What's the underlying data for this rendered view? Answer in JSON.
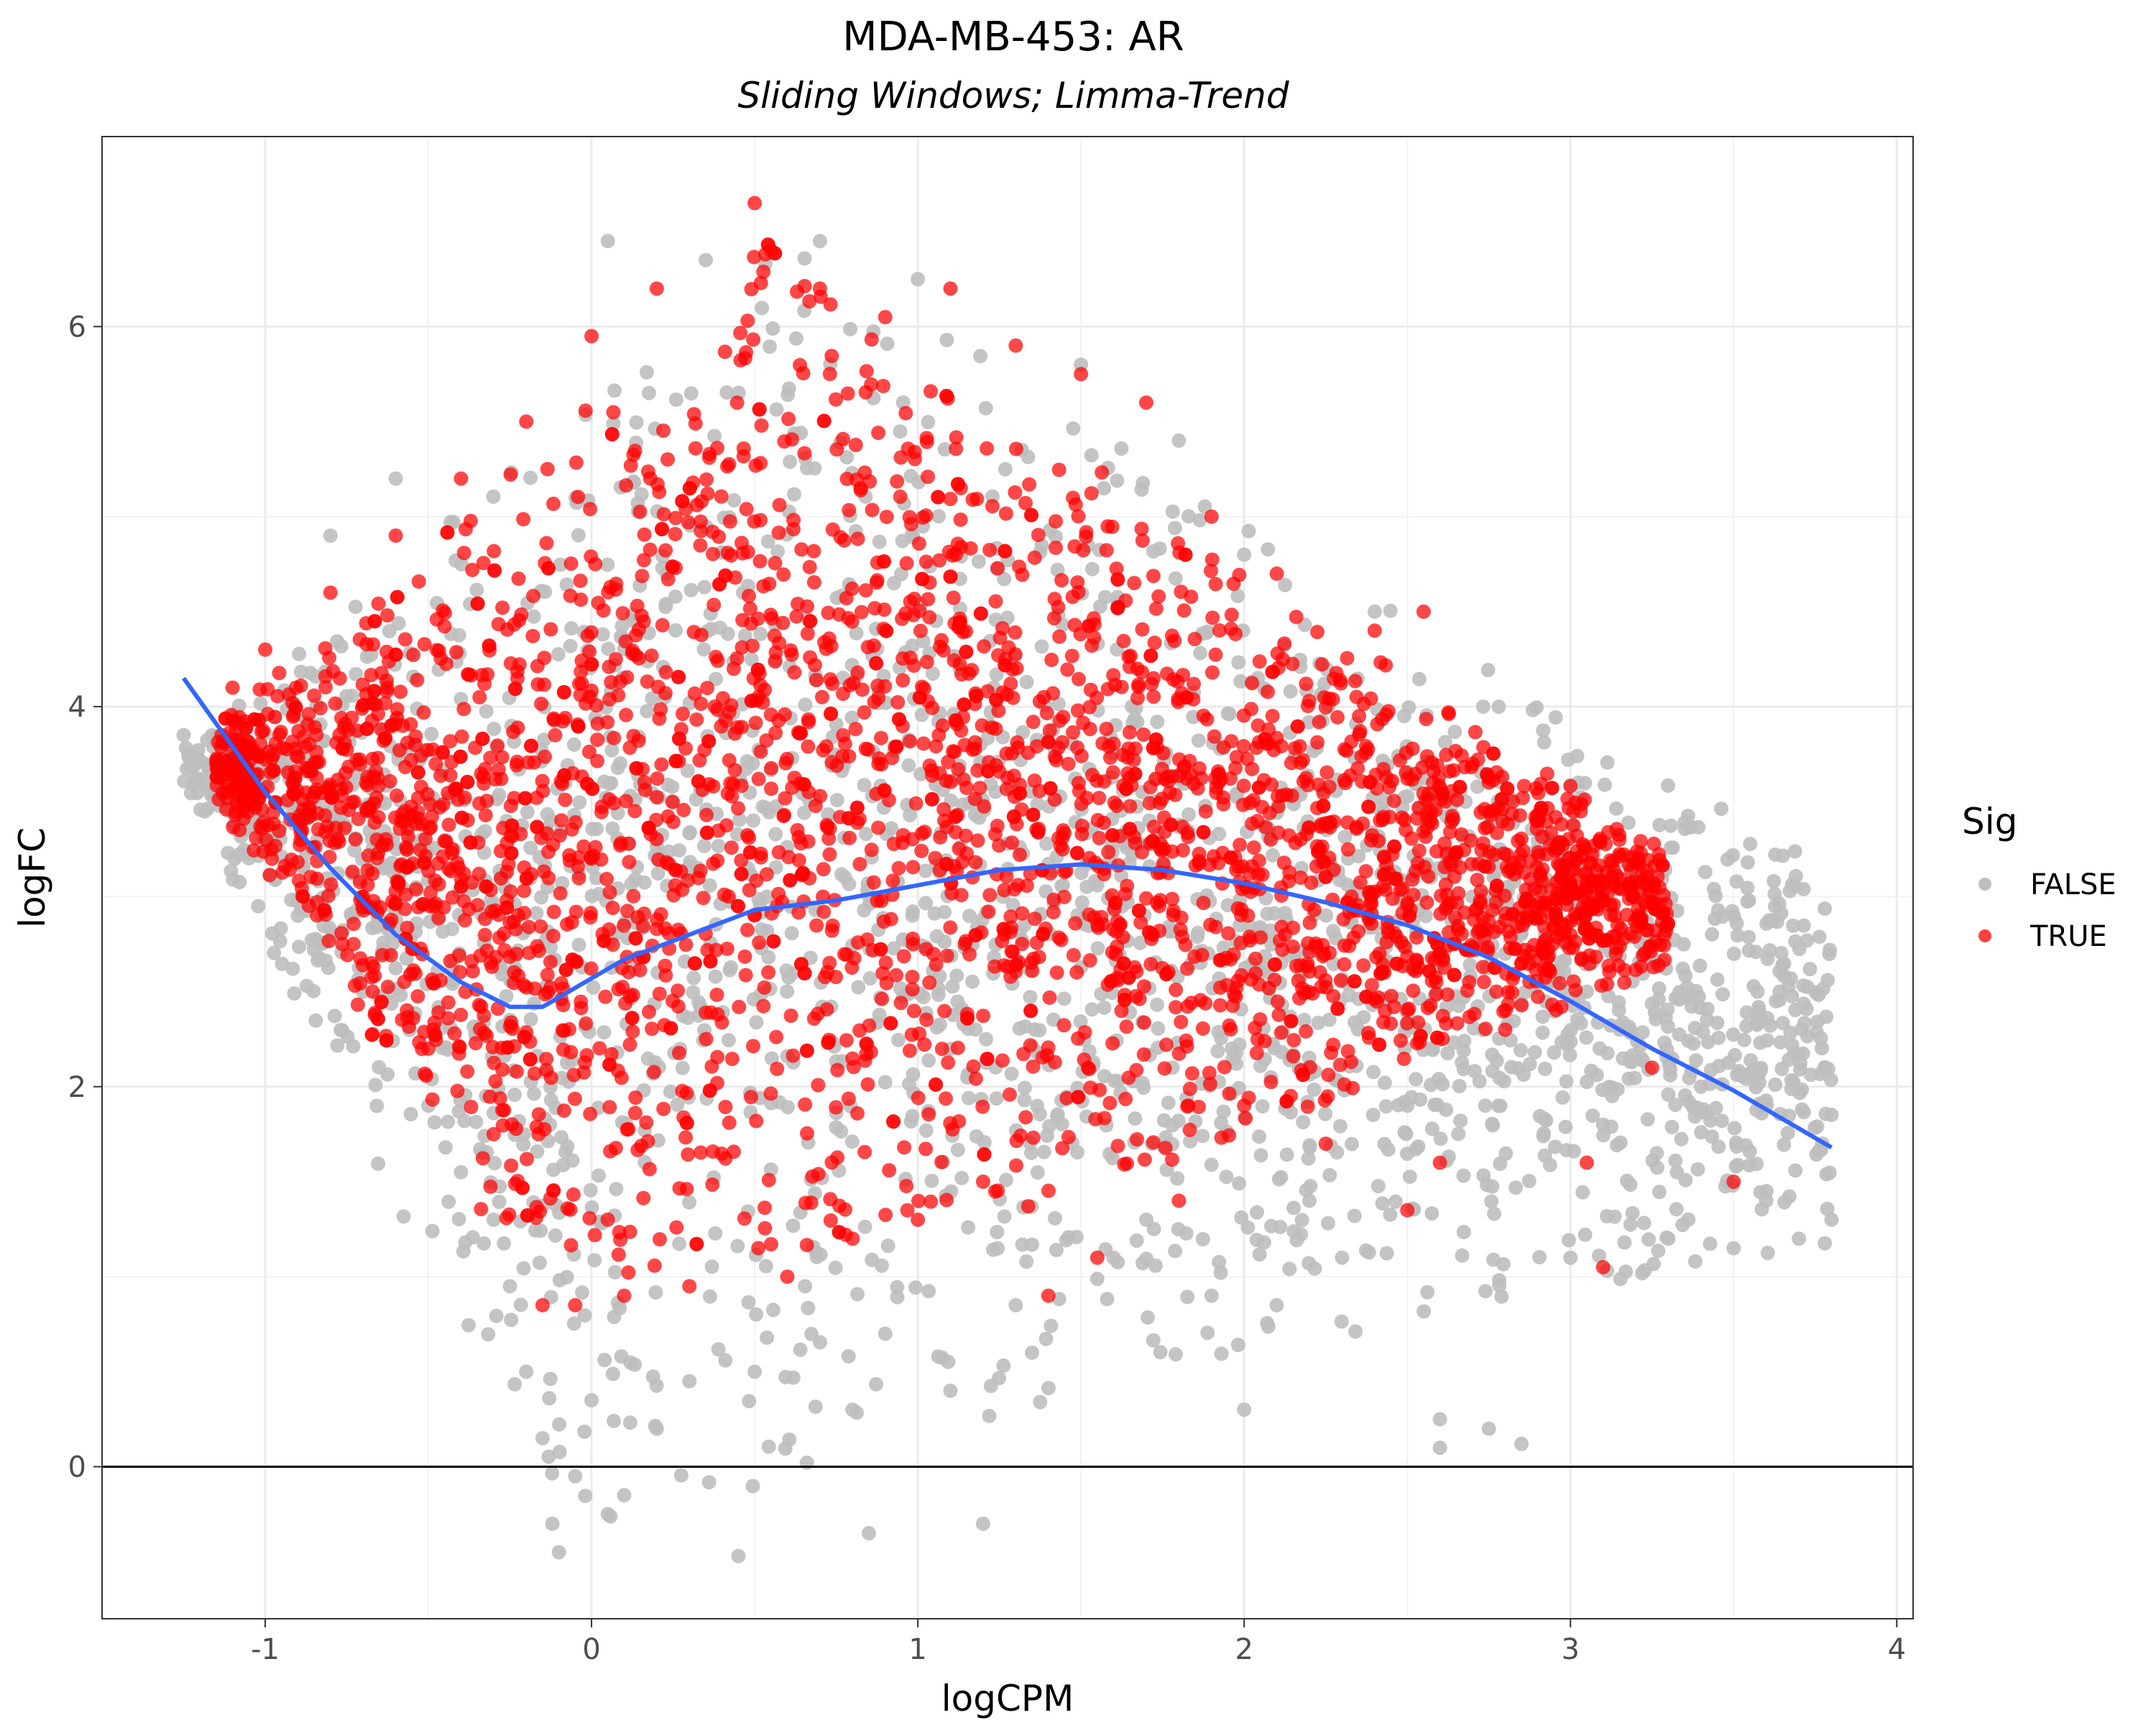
{
  "chart_data": {
    "type": "scatter",
    "title": "MDA-MB-453: AR",
    "subtitle": "Sliding Windows; Limma-Trend",
    "xlabel": "logCPM",
    "ylabel": "logFC",
    "xlim": [
      -1.5,
      4.05
    ],
    "ylim": [
      -0.8,
      7.0
    ],
    "x_ticks": [
      -1,
      0,
      1,
      2,
      3,
      4
    ],
    "x_tick_labels": [
      "-1",
      "0",
      "1",
      "2",
      "3",
      "4"
    ],
    "y_ticks": [
      0,
      2,
      4,
      6
    ],
    "y_tick_labels": [
      "0",
      "2",
      "4",
      "6"
    ],
    "grid": true,
    "reference_line": {
      "y": 0,
      "color": "#000000"
    },
    "legend": {
      "title": "Sig",
      "position": "right",
      "entries": [
        {
          "label": "FALSE",
          "color": "#bebebe"
        },
        {
          "label": "TRUE",
          "color": "#ff0000"
        }
      ]
    },
    "series": [
      {
        "key": "FALSE",
        "color": "#bebebe",
        "points": [
          [
            -1.25,
            3.85
          ],
          [
            -1.1,
            3.6
          ],
          [
            -1.0,
            3.3
          ],
          [
            -0.9,
            2.9
          ],
          [
            -0.8,
            4.9
          ],
          [
            -0.7,
            2.5
          ],
          [
            -0.6,
            5.2
          ],
          [
            -0.5,
            1.9
          ],
          [
            -0.4,
            1.55
          ],
          [
            -0.3,
            1.3
          ],
          [
            -0.25,
            0.95
          ],
          [
            -0.2,
            0.5
          ],
          [
            -0.15,
            0.15
          ],
          [
            -0.12,
            -0.3
          ],
          [
            -0.1,
            -0.45
          ],
          [
            -0.05,
            -0.05
          ],
          [
            0.0,
            0.35
          ],
          [
            0.05,
            6.45
          ],
          [
            0.05,
            -0.25
          ],
          [
            0.1,
            -0.15
          ],
          [
            0.2,
            0.2
          ],
          [
            0.3,
            0.45
          ],
          [
            0.35,
            6.35
          ],
          [
            0.45,
            -0.47
          ],
          [
            0.5,
            0.5
          ],
          [
            0.7,
            6.45
          ],
          [
            0.8,
            0.3
          ],
          [
            0.85,
            -0.35
          ],
          [
            0.9,
            0.7
          ],
          [
            1.0,
            6.25
          ],
          [
            1.1,
            0.4
          ],
          [
            1.2,
            -0.3
          ],
          [
            1.3,
            0.85
          ],
          [
            1.35,
            0.6
          ],
          [
            1.5,
            5.8
          ],
          [
            1.6,
            1.1
          ],
          [
            1.7,
            1.3
          ],
          [
            1.8,
            5.4
          ],
          [
            1.9,
            0.9
          ],
          [
            2.0,
            4.8
          ],
          [
            2.0,
            0.3
          ],
          [
            2.2,
            1.4
          ],
          [
            2.3,
            1.1
          ],
          [
            2.4,
            4.5
          ],
          [
            2.5,
            1.9
          ],
          [
            2.6,
            0.25
          ],
          [
            2.6,
            0.1
          ],
          [
            2.7,
            3.0
          ],
          [
            2.75,
            0.2
          ],
          [
            2.8,
            2.7
          ],
          [
            2.85,
            0.12
          ],
          [
            2.9,
            3.4
          ],
          [
            3.0,
            1.1
          ],
          [
            3.05,
            2.5
          ],
          [
            3.1,
            1.8
          ],
          [
            3.2,
            3.1
          ],
          [
            3.3,
            1.2
          ],
          [
            3.4,
            2.0
          ],
          [
            3.5,
            1.15
          ],
          [
            3.6,
            1.4
          ],
          [
            3.7,
            1.2
          ],
          [
            3.8,
            1.3
          ]
        ]
      },
      {
        "key": "TRUE",
        "color": "#ff0000",
        "points": [
          [
            -1.15,
            3.7
          ],
          [
            -1.1,
            4.1
          ],
          [
            -1.0,
            4.3
          ],
          [
            -0.9,
            3.4
          ],
          [
            -0.8,
            4.6
          ],
          [
            -0.7,
            3.0
          ],
          [
            -0.6,
            4.9
          ],
          [
            -0.5,
            2.2
          ],
          [
            -0.4,
            5.2
          ],
          [
            -0.3,
            1.75
          ],
          [
            -0.2,
            5.5
          ],
          [
            -0.15,
            0.85
          ],
          [
            -0.05,
            0.85
          ],
          [
            0.0,
            5.95
          ],
          [
            0.1,
            0.9
          ],
          [
            0.2,
            6.2
          ],
          [
            0.3,
            0.95
          ],
          [
            0.5,
            6.65
          ],
          [
            0.55,
            6.4
          ],
          [
            0.6,
            1.0
          ],
          [
            0.7,
            6.2
          ],
          [
            0.8,
            1.2
          ],
          [
            0.9,
            6.05
          ],
          [
            1.0,
            1.3
          ],
          [
            1.1,
            6.2
          ],
          [
            1.2,
            1.5
          ],
          [
            1.3,
            5.9
          ],
          [
            1.4,
            0.9
          ],
          [
            1.5,
            5.75
          ],
          [
            1.55,
            1.1
          ],
          [
            1.7,
            5.6
          ],
          [
            1.8,
            1.4
          ],
          [
            1.9,
            5.0
          ],
          [
            2.0,
            1.9
          ],
          [
            2.1,
            4.7
          ],
          [
            2.25,
            1.7
          ],
          [
            2.4,
            4.4
          ],
          [
            2.5,
            1.35
          ],
          [
            2.55,
            4.5
          ],
          [
            2.6,
            1.6
          ],
          [
            2.7,
            3.7
          ],
          [
            2.8,
            2.3
          ],
          [
            2.9,
            3.4
          ],
          [
            3.0,
            2.8
          ],
          [
            3.05,
            1.6
          ],
          [
            3.1,
            1.05
          ],
          [
            3.15,
            3.3
          ],
          [
            3.25,
            2.1
          ],
          [
            3.5,
            1.5
          ]
        ]
      }
    ],
    "trend_line": {
      "color": "#3366ff",
      "points": [
        [
          -1.25,
          4.15
        ],
        [
          -1.0,
          3.55
        ],
        [
          -0.8,
          3.15
        ],
        [
          -0.6,
          2.8
        ],
        [
          -0.4,
          2.55
        ],
        [
          -0.25,
          2.42
        ],
        [
          -0.15,
          2.42
        ],
        [
          -0.05,
          2.52
        ],
        [
          0.1,
          2.67
        ],
        [
          0.3,
          2.8
        ],
        [
          0.5,
          2.93
        ],
        [
          0.75,
          2.98
        ],
        [
          1.0,
          3.06
        ],
        [
          1.25,
          3.14
        ],
        [
          1.5,
          3.17
        ],
        [
          1.75,
          3.14
        ],
        [
          2.0,
          3.07
        ],
        [
          2.25,
          2.97
        ],
        [
          2.5,
          2.85
        ],
        [
          2.75,
          2.68
        ],
        [
          3.0,
          2.45
        ],
        [
          3.25,
          2.2
        ],
        [
          3.5,
          1.98
        ],
        [
          3.8,
          1.68
        ]
      ]
    }
  }
}
